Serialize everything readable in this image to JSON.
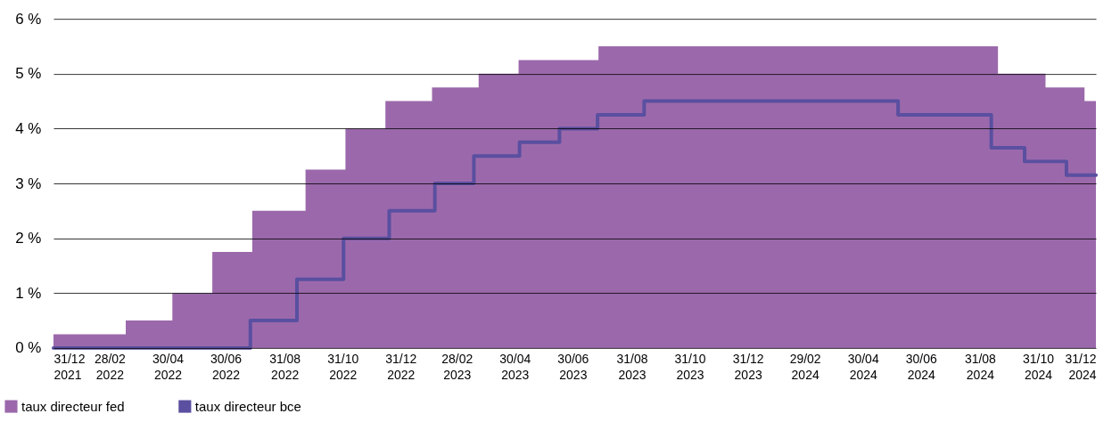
{
  "chart_data": {
    "type": "step",
    "series": [
      {
        "name": "taux directeur fed",
        "type": "area",
        "color": "#9b69ab",
        "x": [
          "2021-12-31",
          "2022-03-17",
          "2022-05-05",
          "2022-06-16",
          "2022-07-28",
          "2022-09-22",
          "2022-11-03",
          "2022-12-15",
          "2023-02-02",
          "2023-03-23",
          "2023-05-04",
          "2023-07-27",
          "2024-09-19",
          "2024-11-08",
          "2024-12-19",
          "2024-12-31"
        ],
        "values": [
          0.25,
          0.5,
          1.0,
          1.75,
          2.5,
          3.25,
          4.0,
          4.5,
          4.75,
          5.0,
          5.25,
          5.5,
          5.0,
          4.75,
          4.5,
          4.5
        ]
      },
      {
        "name": "taux directeur bce",
        "type": "step",
        "color": "#5a4fa0",
        "x": [
          "2021-12-31",
          "2022-07-26",
          "2022-09-13",
          "2022-11-01",
          "2022-12-19",
          "2023-02-05",
          "2023-03-18",
          "2023-05-05",
          "2023-06-16",
          "2023-07-26",
          "2023-09-13",
          "2024-06-06",
          "2024-09-12",
          "2024-10-17",
          "2024-11-30",
          "2024-12-31"
        ],
        "values": [
          0,
          0.5,
          1.25,
          2.0,
          2.5,
          3.0,
          3.5,
          3.75,
          4.0,
          4.25,
          4.5,
          4.25,
          3.65,
          3.4,
          3.15,
          3.15
        ]
      }
    ],
    "xlim": [
      "2021-12-31",
      "2024-12-31"
    ],
    "xticks": [
      {
        "value": "2021-12-31",
        "label": "31/12\n2021"
      },
      {
        "value": "2022-02-28",
        "label": "28/02\n2022"
      },
      {
        "value": "2022-04-30",
        "label": "30/04\n2022"
      },
      {
        "value": "2022-06-30",
        "label": "30/06\n2022"
      },
      {
        "value": "2022-08-31",
        "label": "31/08\n2022"
      },
      {
        "value": "2022-10-31",
        "label": "31/10\n2022"
      },
      {
        "value": "2022-12-31",
        "label": "31/12\n2022"
      },
      {
        "value": "2023-02-28",
        "label": "28/02\n2023"
      },
      {
        "value": "2023-04-30",
        "label": "30/04\n2023"
      },
      {
        "value": "2023-06-30",
        "label": "30/06\n2023"
      },
      {
        "value": "2023-08-31",
        "label": "31/08\n2023"
      },
      {
        "value": "2023-10-31",
        "label": "31/10\n2023"
      },
      {
        "value": "2023-12-31",
        "label": "31/12\n2023"
      },
      {
        "value": "2024-02-29",
        "label": "29/02\n2024"
      },
      {
        "value": "2024-04-30",
        "label": "30/04\n2024"
      },
      {
        "value": "2024-06-30",
        "label": "30/06\n2024"
      },
      {
        "value": "2024-08-31",
        "label": "31/08\n2024"
      },
      {
        "value": "2024-10-31",
        "label": "31/10\n2024"
      },
      {
        "value": "2024-12-31",
        "label": "31/12\n2024"
      }
    ],
    "ylim": [
      0,
      6
    ],
    "yticks": [
      {
        "value": 0,
        "label": "0 %"
      },
      {
        "value": 1,
        "label": "1 %"
      },
      {
        "value": 2,
        "label": "2 %"
      },
      {
        "value": 3,
        "label": "3 %"
      },
      {
        "value": 4,
        "label": "4 %"
      },
      {
        "value": 5,
        "label": "5 %"
      },
      {
        "value": 6,
        "label": "6 %"
      }
    ],
    "grid": "y",
    "legend": "bottom left"
  }
}
